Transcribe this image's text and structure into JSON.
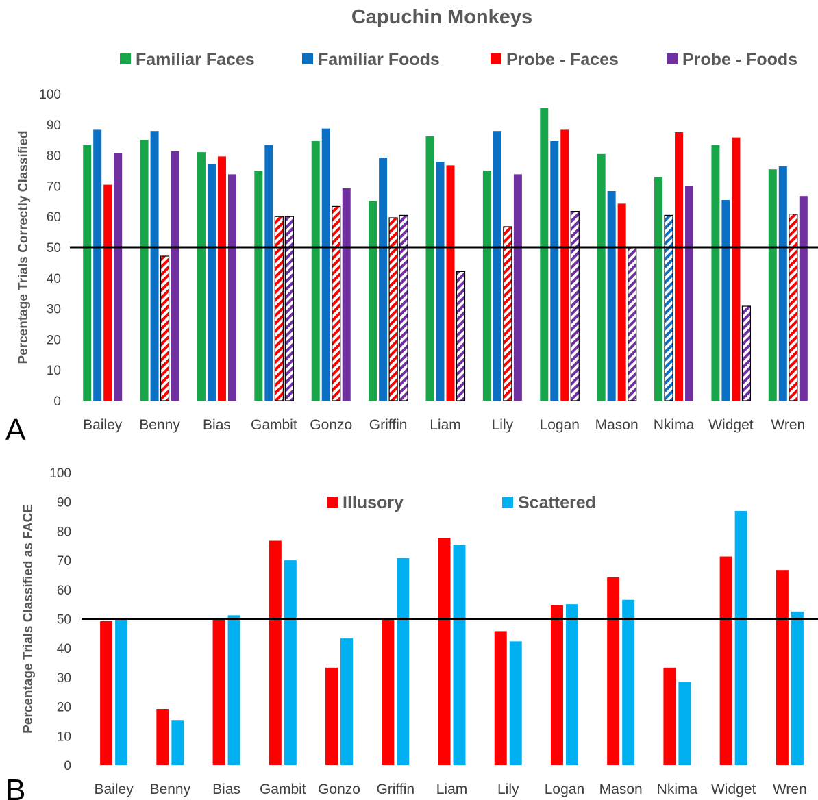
{
  "title": "Capuchin Monkeys",
  "chart_data": [
    {
      "panel": "A",
      "type": "bar",
      "ylabel": "Percentage Trials Correctly Classified",
      "ylim": [
        0,
        100
      ],
      "yticks": [
        0,
        10,
        20,
        30,
        40,
        50,
        60,
        70,
        80,
        90,
        100
      ],
      "reference_line": 50,
      "categories": [
        "Bailey",
        "Benny",
        "Bias",
        "Gambit",
        "Gonzo",
        "Griffin",
        "Liam",
        "Lily",
        "Logan",
        "Mason",
        "Nkima",
        "Widget",
        "Wren"
      ],
      "legend_position": "top",
      "series": [
        {
          "name": "Familiar Faces",
          "color": "#19a64a",
          "values": [
            83.3,
            85,
            81,
            75,
            84.6,
            65,
            86.2,
            75,
            95.4,
            80.4,
            72.9,
            83.3,
            75.4
          ],
          "hatched": [
            false,
            false,
            false,
            false,
            false,
            false,
            false,
            false,
            false,
            false,
            false,
            false,
            false
          ]
        },
        {
          "name": "Familiar Foods",
          "color": "#0b6fc4",
          "values": [
            88.3,
            87.9,
            77.1,
            83.3,
            88.7,
            79.2,
            77.9,
            87.9,
            84.6,
            68.3,
            60.4,
            65.4,
            76.4
          ],
          "hatched": [
            false,
            false,
            false,
            false,
            false,
            false,
            false,
            false,
            false,
            false,
            true,
            false,
            false
          ]
        },
        {
          "name": "Probe - Faces",
          "color": "#fe0000",
          "values": [
            70.4,
            47.1,
            79.6,
            60,
            63.3,
            59.6,
            76.7,
            56.7,
            88.3,
            64.2,
            87.5,
            85.8,
            60.8
          ],
          "hatched": [
            false,
            true,
            false,
            true,
            true,
            true,
            false,
            true,
            false,
            false,
            false,
            false,
            true
          ]
        },
        {
          "name": "Probe - Foods",
          "color": "#7030a0",
          "values": [
            80.8,
            81.3,
            73.8,
            60,
            69.2,
            60.4,
            42.1,
            73.8,
            61.7,
            50,
            70,
            30.8,
            66.7
          ],
          "hatched": [
            false,
            false,
            false,
            true,
            false,
            true,
            true,
            false,
            true,
            true,
            false,
            true,
            false
          ]
        }
      ]
    },
    {
      "panel": "B",
      "type": "bar",
      "ylabel": "Percentage Trials Classified as FACE",
      "ylim": [
        0,
        100
      ],
      "yticks": [
        0,
        10,
        20,
        30,
        40,
        50,
        60,
        70,
        80,
        90,
        100
      ],
      "reference_line": 50,
      "categories": [
        "Bailey",
        "Benny",
        "Bias",
        "Gambit",
        "Gonzo",
        "Griffin",
        "Liam",
        "Lily",
        "Logan",
        "Mason",
        "Nkima",
        "Widget",
        "Wren"
      ],
      "legend_position": "top-center",
      "series": [
        {
          "name": "Illusory",
          "color": "#fe0000",
          "values": [
            49.2,
            19.2,
            50,
            76.7,
            33.3,
            50,
            77.7,
            45.8,
            54.6,
            64.2,
            33.3,
            71.3,
            66.7
          ]
        },
        {
          "name": "Scattered",
          "color": "#00b0f0",
          "values": [
            50,
            15.4,
            51.2,
            70,
            43.3,
            70.8,
            75.4,
            42.3,
            55,
            56.5,
            28.5,
            86.9,
            52.5
          ]
        }
      ]
    }
  ]
}
